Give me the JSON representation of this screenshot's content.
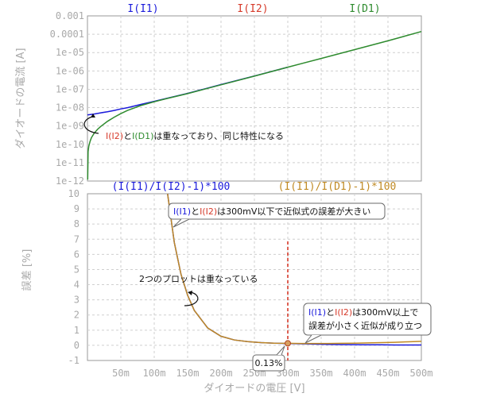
{
  "chart_data": [
    {
      "type": "line",
      "yscale": "log",
      "ylabel": "ダイオードの電流 [A]",
      "ylim": [
        1e-12,
        0.001
      ],
      "xlim": [
        0,
        0.5
      ],
      "grid": true,
      "y_ticks": [
        "1e-12",
        "1e-11",
        "1e-10",
        "1e-09",
        "1e-08",
        "1e-07",
        "1e-06",
        "1e-05",
        "0.0001",
        "0.001"
      ],
      "trace_labels": [
        {
          "text": "I(I1)",
          "color": "#1a1adb"
        },
        {
          "text": "I(I2)",
          "color": "#d63a2a"
        },
        {
          "text": "I(D1)",
          "color": "#2e8b2e"
        }
      ],
      "series": [
        {
          "name": "I(I1)",
          "color": "#1a1adb",
          "x": [
            0.0,
            0.01,
            0.02,
            0.03,
            0.04,
            0.05,
            0.06,
            0.08,
            0.1,
            0.12,
            0.15,
            0.2,
            0.25,
            0.3
          ],
          "y": [
            4e-09,
            4.5e-09,
            5.2e-09,
            6e-09,
            7e-09,
            8.5e-09,
            1e-08,
            1.5e-08,
            2.2e-08,
            3.3e-08,
            6e-08,
            1.8e-07,
            5.3e-07,
            1.6e-06
          ]
        },
        {
          "name": "I(D1)",
          "color": "#2e8b2e",
          "x": [
            0.0003,
            0.001,
            0.002,
            0.004,
            0.006,
            0.01,
            0.015,
            0.02,
            0.03,
            0.04,
            0.05,
            0.06,
            0.08,
            0.1,
            0.12,
            0.15,
            0.2,
            0.25,
            0.3,
            0.35,
            0.4,
            0.45,
            0.5
          ],
          "y": [
            1.2e-12,
            4e-11,
            8e-11,
            1.5e-10,
            2.3e-10,
            4e-10,
            6.5e-10,
            9.5e-10,
            1.8e-09,
            3e-09,
            4.7e-09,
            7e-09,
            1.3e-08,
            2.1e-08,
            3.2e-08,
            5.8e-08,
            1.75e-07,
            5.2e-07,
            1.6e-06,
            4.8e-06,
            1.45e-05,
            4.4e-05,
            0.00014
          ]
        }
      ],
      "annotations": [
        {
          "parts": [
            {
              "text": "I(I2)",
              "color": "#d63a2a"
            },
            {
              "text": "と",
              "color": "#111111"
            },
            {
              "text": "I(D1)",
              "color": "#2e8b2e"
            },
            {
              "text": "は重なっており、同じ特性になる",
              "color": "#111111"
            }
          ]
        }
      ]
    },
    {
      "type": "line",
      "ylabel": "誤差 [%]",
      "xlabel": "ダイオードの電圧 [V]",
      "ylim": [
        -1,
        10
      ],
      "xlim": [
        0,
        0.5
      ],
      "grid": true,
      "y_ticks": [
        "-1",
        "0",
        "1",
        "2",
        "3",
        "4",
        "5",
        "6",
        "7",
        "8",
        "9",
        "10"
      ],
      "x_ticks": [
        "50m",
        "100m",
        "150m",
        "200m",
        "250m",
        "300m",
        "350m",
        "400m",
        "450m",
        "500m"
      ],
      "trace_labels": [
        {
          "text": "(I(I1)/I(I2)-1)*100",
          "color": "#1a1adb"
        },
        {
          "text": "(I(I1)/I(D1)-1)*100",
          "color": "#c08a24"
        }
      ],
      "series": [
        {
          "name": "(I(I1)/I(I2)-1)*100",
          "color": "#1a1adb",
          "x": [
            0.12,
            0.13,
            0.14,
            0.15,
            0.16,
            0.18,
            0.2,
            0.22,
            0.24,
            0.26,
            0.28,
            0.3,
            0.32,
            0.34,
            0.36,
            0.38,
            0.4,
            0.42,
            0.44,
            0.46,
            0.48,
            0.5
          ],
          "y": [
            10.0,
            6.8,
            4.7,
            3.3,
            2.3,
            1.15,
            0.6,
            0.35,
            0.24,
            0.18,
            0.14,
            0.12,
            0.1,
            0.08,
            0.06,
            0.05,
            0.04,
            0.03,
            0.03,
            0.02,
            0.02,
            0.02
          ]
        },
        {
          "name": "(I(I1)/I(D1)-1)*100",
          "color": "#c08a24",
          "x": [
            0.12,
            0.13,
            0.14,
            0.15,
            0.16,
            0.18,
            0.2,
            0.22,
            0.24,
            0.26,
            0.28,
            0.3,
            0.32,
            0.34,
            0.36,
            0.38,
            0.4,
            0.42,
            0.44,
            0.46,
            0.48,
            0.5
          ],
          "y": [
            10.0,
            6.8,
            4.7,
            3.3,
            2.3,
            1.15,
            0.6,
            0.35,
            0.24,
            0.18,
            0.14,
            0.13,
            0.12,
            0.12,
            0.12,
            0.13,
            0.14,
            0.16,
            0.18,
            0.2,
            0.23,
            0.26
          ]
        }
      ],
      "annotations": [
        {
          "parts": [
            {
              "text": "I(I1)",
              "color": "#1a1adb"
            },
            {
              "text": "と",
              "color": "#111111"
            },
            {
              "text": "I(I2)",
              "color": "#d63a2a"
            },
            {
              "text": "は300mV以下で近似式の誤差が大きい",
              "color": "#111111"
            }
          ]
        },
        {
          "parts": [
            {
              "text": "2つのプロットは重なっている",
              "color": "#111111"
            }
          ]
        },
        {
          "parts": [
            {
              "text": "I(I1)",
              "color": "#1a1adb"
            },
            {
              "text": "と",
              "color": "#111111"
            },
            {
              "text": "I(I2)",
              "color": "#d63a2a"
            },
            {
              "text": "は300mV以上で",
              "color": "#111111"
            }
          ]
        },
        {
          "parts": [
            {
              "text": "誤差が小さく近似が成り立つ",
              "color": "#111111"
            }
          ]
        },
        {
          "parts": [
            {
              "text": "0.13%",
              "color": "#111111"
            }
          ]
        }
      ],
      "marker": {
        "x": 0.3,
        "y": 0.13,
        "color": "#d63a2a"
      }
    }
  ]
}
